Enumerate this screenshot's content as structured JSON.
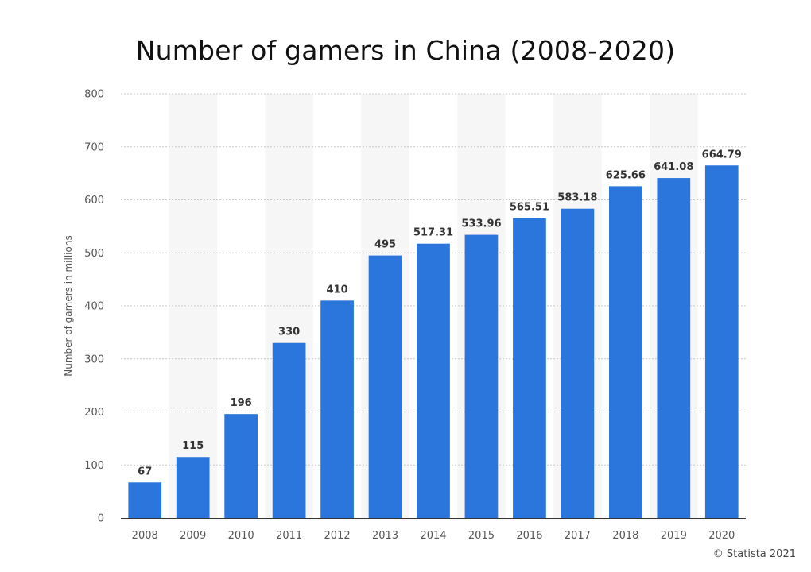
{
  "chart_data": {
    "type": "bar",
    "title": "Number of gamers in China (2008-2020)",
    "ylabel": "Number of gamers in millions",
    "xlabel": "",
    "categories": [
      "2008",
      "2009",
      "2010",
      "2011",
      "2012",
      "2013",
      "2014",
      "2015",
      "2016",
      "2017",
      "2018",
      "2019",
      "2020"
    ],
    "values": [
      67,
      115,
      196,
      330,
      410,
      495,
      517.31,
      533.96,
      565.51,
      583.18,
      625.66,
      641.08,
      664.79
    ],
    "value_labels": [
      "67",
      "115",
      "196",
      "330",
      "410",
      "495",
      "517.31",
      "533.96",
      "565.51",
      "583.18",
      "625.66",
      "641.08",
      "664.79"
    ],
    "ylim": [
      0,
      800
    ],
    "yticks": [
      "0",
      "100",
      "200",
      "300",
      "400",
      "500",
      "600",
      "700",
      "800"
    ],
    "grid": true,
    "bar_color": "#2a76dd",
    "band_color": "#f6f6f6"
  },
  "footer": {
    "copyright": "© Statista 2021"
  }
}
